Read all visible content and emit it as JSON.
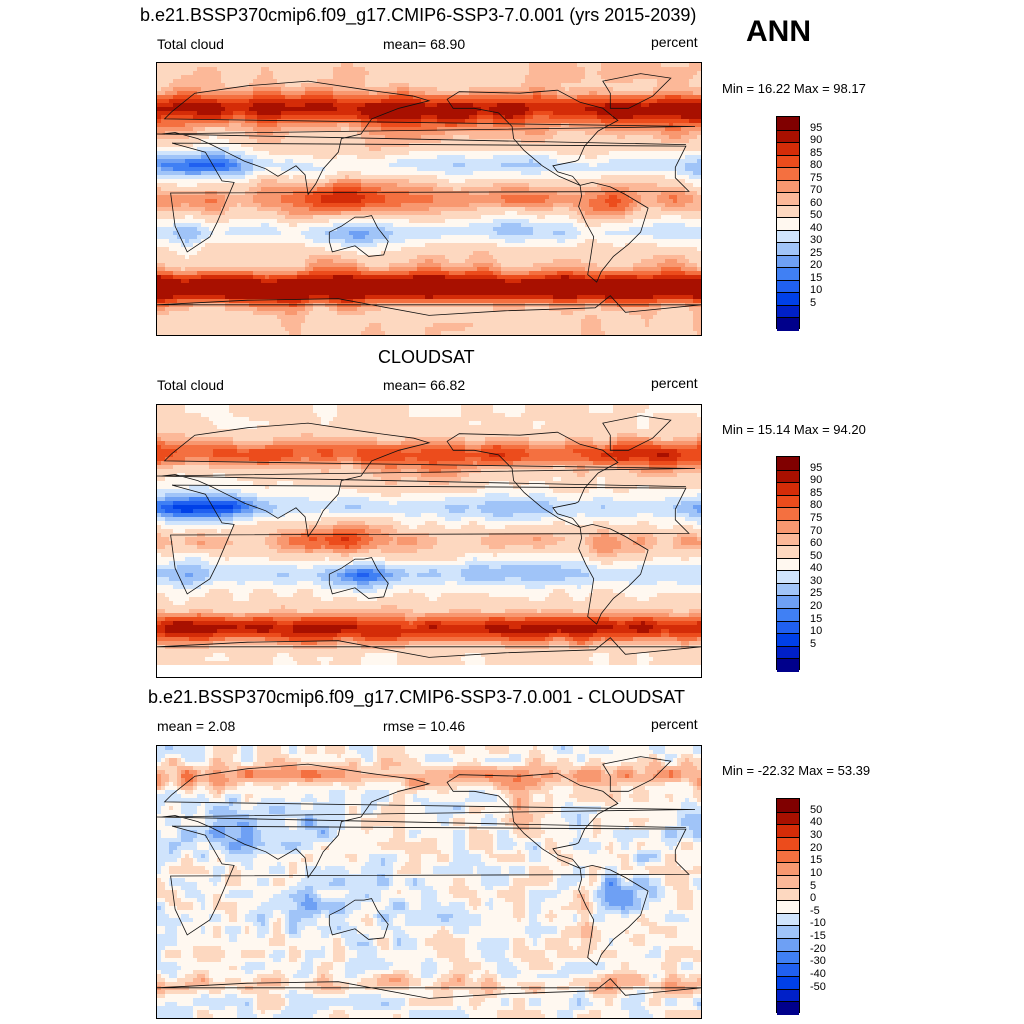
{
  "season_label": "ANN",
  "colors": {
    "abs": [
      "#00008b",
      "#0020c8",
      "#0040e8",
      "#2060f0",
      "#4080f4",
      "#6ea0f4",
      "#a0c4f8",
      "#d0e4fc",
      "#fff8f0",
      "#fdd8c0",
      "#fcb898",
      "#f89870",
      "#f47040",
      "#ec4c1c",
      "#d42c08",
      "#a81000",
      "#800000"
    ],
    "diff": [
      "#00008b",
      "#0020c8",
      "#0040e8",
      "#2060f0",
      "#4080f4",
      "#6ea0f4",
      "#a0c4f8",
      "#d0e4fc",
      "#fff8f0",
      "#fdd8c0",
      "#fcb898",
      "#f89870",
      "#f47040",
      "#ec4c1c",
      "#d42c08",
      "#a81000",
      "#800000"
    ]
  },
  "panels": [
    {
      "title": "b.e21.BSSP370cmip6.f09_g17.CMIP6-SSP3-7.0.001 (yrs 2015-2039)",
      "left_label": "Total cloud",
      "center_label": "mean=  68.90",
      "units": "percent",
      "minmax": "Min =  16.22 Max =  98.17"
    },
    {
      "title": "CLOUDSAT",
      "left_label": "Total cloud",
      "center_label": "mean=  66.82",
      "units": "percent",
      "minmax": "Min =  15.14 Max =  94.20"
    },
    {
      "title": "b.e21.BSSP370cmip6.f09_g17.CMIP6-SSP3-7.0.001 - CLOUDSAT",
      "left_label": "mean =   2.08",
      "center_label": "rmse =  10.46",
      "units": "percent",
      "minmax": "Min = -22.32 Max =  53.39"
    }
  ],
  "chart_data": [
    {
      "type": "heatmap",
      "title": "b.e21.BSSP370cmip6.f09_g17.CMIP6-SSP3-7.0.001 (yrs 2015-2039)",
      "variable": "Total cloud",
      "units": "percent",
      "mean": 68.9,
      "min": 16.22,
      "max": 98.17,
      "colorbar_levels": [
        95,
        90,
        85,
        80,
        75,
        70,
        60,
        50,
        40,
        30,
        25,
        20,
        15,
        10,
        5
      ]
    },
    {
      "type": "heatmap",
      "title": "CLOUDSAT",
      "variable": "Total cloud",
      "units": "percent",
      "mean": 66.82,
      "min": 15.14,
      "max": 94.2,
      "colorbar_levels": [
        95,
        90,
        85,
        80,
        75,
        70,
        60,
        50,
        40,
        30,
        25,
        20,
        15,
        10,
        5
      ]
    },
    {
      "type": "heatmap",
      "title": "b.e21.BSSP370cmip6.f09_g17.CMIP6-SSP3-7.0.001 - CLOUDSAT",
      "units": "percent",
      "mean": 2.08,
      "rmse": 10.46,
      "min": -22.32,
      "max": 53.39,
      "colorbar_levels": [
        50,
        40,
        30,
        20,
        15,
        10,
        5,
        0,
        -5,
        -10,
        -15,
        -20,
        -30,
        -40,
        -50
      ]
    }
  ]
}
